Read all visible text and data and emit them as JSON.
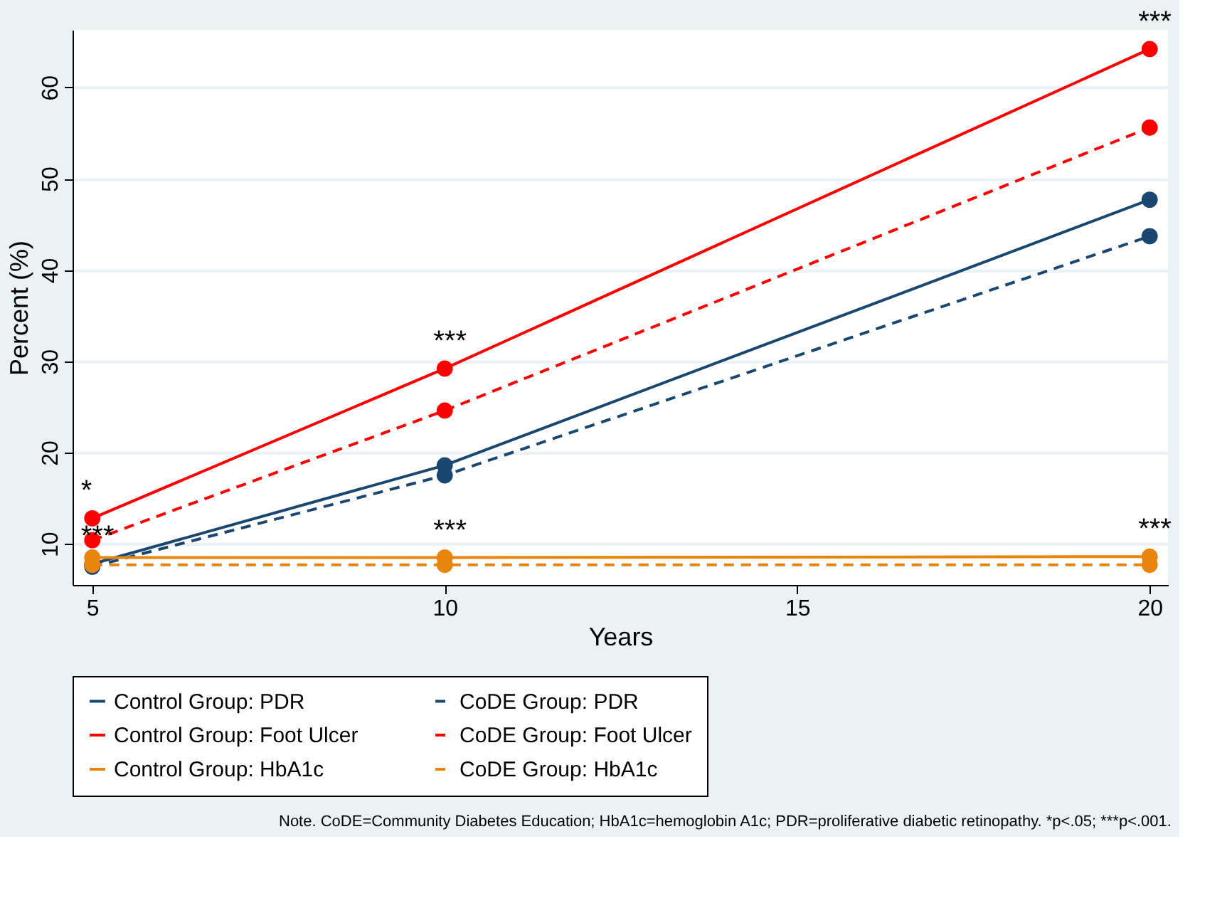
{
  "chart_data": {
    "type": "line",
    "xlabel": "Years",
    "ylabel": "Percent (%)",
    "x": [
      5,
      10,
      20
    ],
    "series": [
      {
        "name": "Control Group: PDR",
        "color": "#1a476f",
        "line_style": "solid",
        "values": [
          7.8,
          18.6,
          47.7
        ]
      },
      {
        "name": "CoDE Group: PDR",
        "color": "#1a476f",
        "line_style": "dashed",
        "values": [
          7.5,
          17.5,
          43.7
        ]
      },
      {
        "name": "Control Group: Foot Ulcer",
        "color": "#ff0000",
        "line_style": "solid",
        "values": [
          12.8,
          29.2,
          64.2
        ]
      },
      {
        "name": "CoDE Group: Foot Ulcer",
        "color": "#ff0000",
        "line_style": "dashed",
        "values": [
          10.4,
          24.6,
          55.6
        ]
      },
      {
        "name": "Control Group: HbA1c",
        "color": "#e8850c",
        "line_style": "solid",
        "values": [
          8.5,
          8.5,
          8.6
        ]
      },
      {
        "name": "CoDE Group: HbA1c",
        "color": "#e8850c",
        "line_style": "dashed",
        "values": [
          7.7,
          7.7,
          7.7
        ]
      }
    ],
    "marker": "circle",
    "xlim": [
      4.72,
      20.26
    ],
    "xticks": [
      5,
      10,
      15,
      20
    ],
    "ylim": [
      5.5,
      66.3
    ],
    "yticks": [
      10,
      20,
      30,
      40,
      50,
      60
    ],
    "grid": "y",
    "legend": "bottom",
    "annotations": [
      {
        "text": "*",
        "x": 5,
        "y": 12.8
      },
      {
        "text": "***",
        "x": 5,
        "y": 7.8
      },
      {
        "text": "***",
        "x": 10,
        "y": 29.2
      },
      {
        "text": "***",
        "x": 10,
        "y": 8.5
      },
      {
        "text": "***",
        "x": 20,
        "y": 64.2
      },
      {
        "text": "***",
        "x": 20,
        "y": 8.6
      },
      "Note. CoDE=Community Diabetes Education; HbA1c=hemoglobin A1c; PDR=proliferative diabetic retinopathy. *p<.05; ***p<.001."
    ]
  }
}
